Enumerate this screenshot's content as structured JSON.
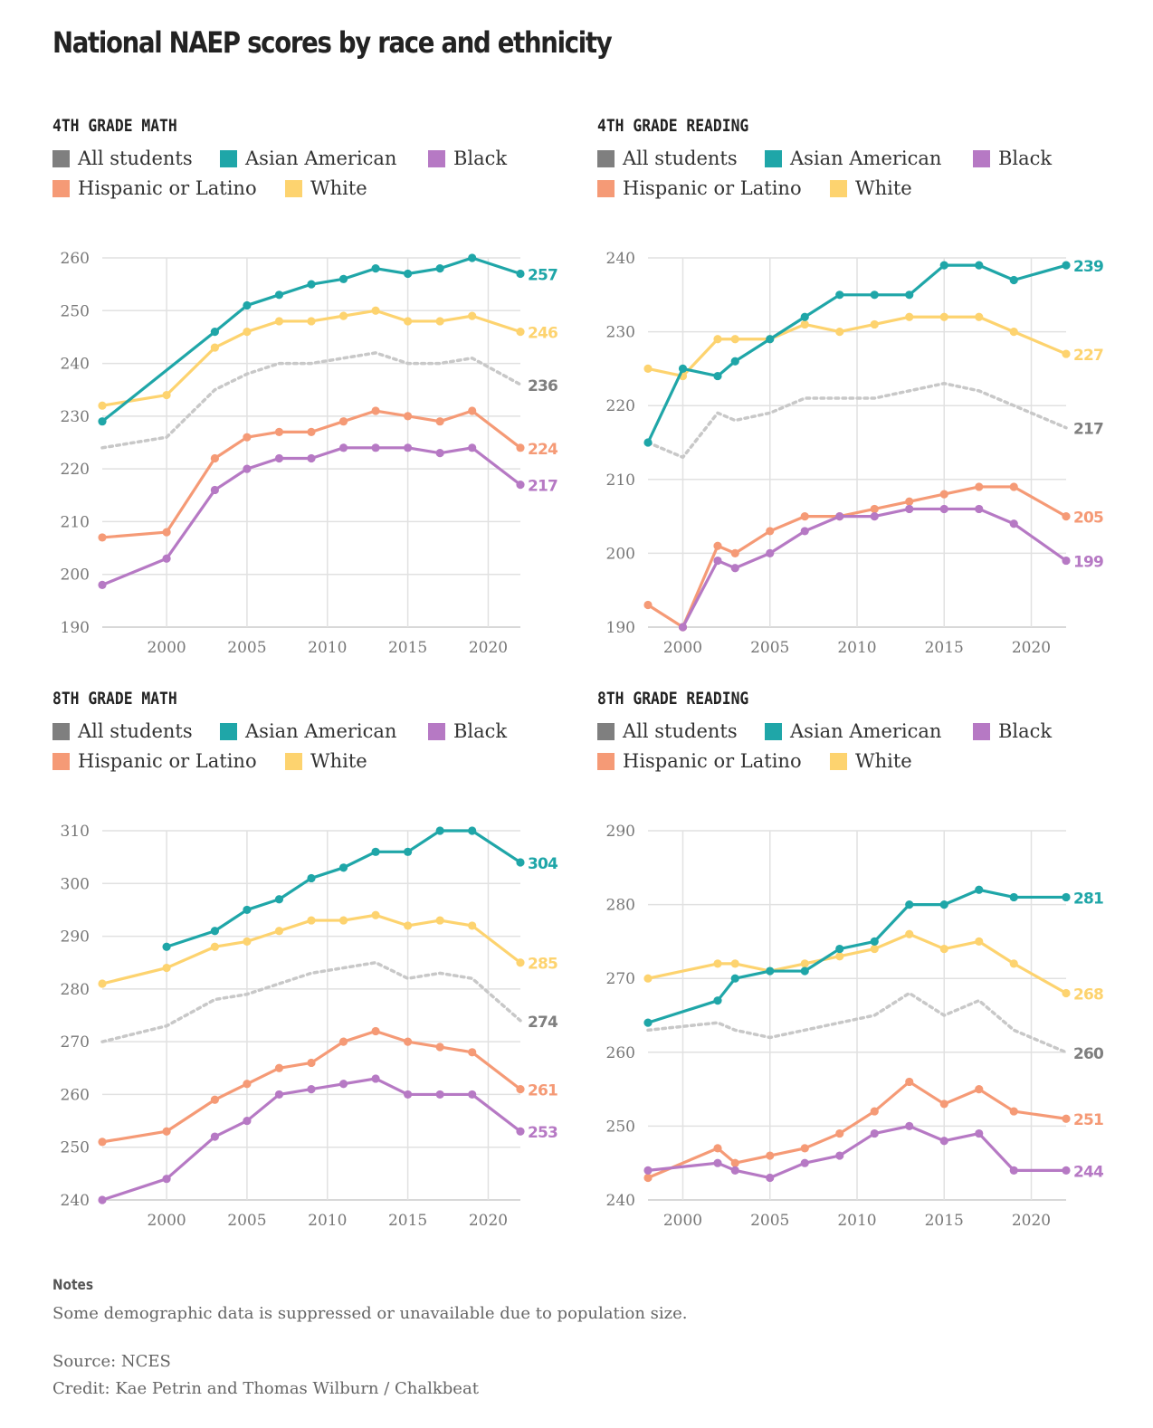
{
  "title": "National NAEP scores by race and ethnicity",
  "legend": [
    {
      "name": "All students",
      "color": "#7f7f7f"
    },
    {
      "name": "Asian American",
      "color": "#1fa6a8"
    },
    {
      "name": "Black",
      "color": "#b679c4"
    },
    {
      "name": "Hispanic or Latino",
      "color": "#f59a76"
    },
    {
      "name": "White",
      "color": "#fdd36f"
    }
  ],
  "notes": {
    "heading": "Notes",
    "text": "Some demographic data is suppressed or unavailable due to population size.",
    "source": "Source: NCES",
    "credit": "Credit: Kae Petrin and Thomas Wilburn / Chalkbeat"
  },
  "chart_data": [
    {
      "type": "line",
      "title": "4TH GRADE MATH",
      "xlim": [
        1996,
        2022
      ],
      "ylim": [
        190,
        260
      ],
      "yticks": [
        190,
        200,
        210,
        220,
        230,
        240,
        250,
        260
      ],
      "xticks": [
        2000,
        2005,
        2010,
        2015,
        2020
      ],
      "grid": true,
      "series": [
        {
          "name": "All students",
          "color": "#c8c8c8",
          "label_color": "#7f7f7f",
          "dashed": true,
          "end_label": "236",
          "x": [
            1996,
            2000,
            2003,
            2005,
            2007,
            2009,
            2011,
            2013,
            2015,
            2017,
            2019,
            2022
          ],
          "y": [
            224,
            226,
            235,
            238,
            240,
            240,
            241,
            242,
            240,
            240,
            241,
            236
          ]
        },
        {
          "name": "White",
          "color": "#fdd36f",
          "label_color": "#fdd36f",
          "end_label": "246",
          "x": [
            1996,
            2000,
            2003,
            2005,
            2007,
            2009,
            2011,
            2013,
            2015,
            2017,
            2019,
            2022
          ],
          "y": [
            232,
            234,
            243,
            246,
            248,
            248,
            249,
            250,
            248,
            248,
            249,
            246
          ]
        },
        {
          "name": "Hispanic or Latino",
          "color": "#f59a76",
          "label_color": "#f59a76",
          "end_label": "224",
          "x": [
            1996,
            2000,
            2003,
            2005,
            2007,
            2009,
            2011,
            2013,
            2015,
            2017,
            2019,
            2022
          ],
          "y": [
            207,
            208,
            222,
            226,
            227,
            227,
            229,
            231,
            230,
            229,
            231,
            224
          ]
        },
        {
          "name": "Black",
          "color": "#b679c4",
          "label_color": "#b679c4",
          "end_label": "217",
          "x": [
            1996,
            2000,
            2003,
            2005,
            2007,
            2009,
            2011,
            2013,
            2015,
            2017,
            2019,
            2022
          ],
          "y": [
            198,
            203,
            216,
            220,
            222,
            222,
            224,
            224,
            224,
            223,
            224,
            217
          ]
        },
        {
          "name": "Asian American",
          "color": "#1fa6a8",
          "label_color": "#1fa6a8",
          "end_label": "257",
          "x": [
            1996,
            2003,
            2005,
            2007,
            2009,
            2011,
            2013,
            2015,
            2017,
            2019,
            2022
          ],
          "y": [
            229,
            246,
            251,
            253,
            255,
            256,
            258,
            257,
            258,
            260,
            257
          ]
        }
      ]
    },
    {
      "type": "line",
      "title": "4TH GRADE READING",
      "xlim": [
        1998,
        2022
      ],
      "ylim": [
        190,
        240
      ],
      "yticks": [
        190,
        200,
        210,
        220,
        230,
        240
      ],
      "xticks": [
        2000,
        2005,
        2010,
        2015,
        2020
      ],
      "grid": true,
      "series": [
        {
          "name": "All students",
          "color": "#c8c8c8",
          "label_color": "#7f7f7f",
          "dashed": true,
          "end_label": "217",
          "x": [
            1998,
            2000,
            2002,
            2003,
            2005,
            2007,
            2009,
            2011,
            2013,
            2015,
            2017,
            2019,
            2022
          ],
          "y": [
            215,
            213,
            219,
            218,
            219,
            221,
            221,
            221,
            222,
            223,
            222,
            220,
            217
          ]
        },
        {
          "name": "White",
          "color": "#fdd36f",
          "label_color": "#fdd36f",
          "end_label": "227",
          "x": [
            1998,
            2000,
            2002,
            2003,
            2005,
            2007,
            2009,
            2011,
            2013,
            2015,
            2017,
            2019,
            2022
          ],
          "y": [
            225,
            224,
            229,
            229,
            229,
            231,
            230,
            231,
            232,
            232,
            232,
            230,
            227
          ]
        },
        {
          "name": "Hispanic or Latino",
          "color": "#f59a76",
          "label_color": "#f59a76",
          "end_label": "205",
          "x": [
            1998,
            2000,
            2002,
            2003,
            2005,
            2007,
            2009,
            2011,
            2013,
            2015,
            2017,
            2019,
            2022
          ],
          "y": [
            193,
            190,
            201,
            200,
            203,
            205,
            205,
            206,
            207,
            208,
            209,
            209,
            205
          ]
        },
        {
          "name": "Black",
          "color": "#b679c4",
          "label_color": "#b679c4",
          "end_label": "199",
          "x": [
            2000,
            2002,
            2003,
            2005,
            2007,
            2009,
            2011,
            2013,
            2015,
            2017,
            2019,
            2022
          ],
          "y": [
            190,
            199,
            198,
            200,
            203,
            205,
            205,
            206,
            206,
            206,
            204,
            199
          ]
        },
        {
          "name": "Asian American",
          "color": "#1fa6a8",
          "label_color": "#1fa6a8",
          "end_label": "239",
          "x": [
            1998,
            2000,
            2002,
            2003,
            2005,
            2007,
            2009,
            2011,
            2013,
            2015,
            2017,
            2019,
            2022
          ],
          "y": [
            215,
            225,
            224,
            226,
            229,
            232,
            235,
            235,
            235,
            239,
            239,
            237,
            239
          ]
        }
      ]
    },
    {
      "type": "line",
      "title": "8TH GRADE MATH",
      "xlim": [
        1996,
        2022
      ],
      "ylim": [
        240,
        310
      ],
      "yticks": [
        240,
        250,
        260,
        270,
        280,
        290,
        300,
        310
      ],
      "xticks": [
        2000,
        2005,
        2010,
        2015,
        2020
      ],
      "grid": true,
      "series": [
        {
          "name": "All students",
          "color": "#c8c8c8",
          "label_color": "#7f7f7f",
          "dashed": true,
          "end_label": "274",
          "x": [
            1996,
            2000,
            2003,
            2005,
            2007,
            2009,
            2011,
            2013,
            2015,
            2017,
            2019,
            2022
          ],
          "y": [
            270,
            273,
            278,
            279,
            281,
            283,
            284,
            285,
            282,
            283,
            282,
            274
          ]
        },
        {
          "name": "White",
          "color": "#fdd36f",
          "label_color": "#fdd36f",
          "end_label": "285",
          "x": [
            1996,
            2000,
            2003,
            2005,
            2007,
            2009,
            2011,
            2013,
            2015,
            2017,
            2019,
            2022
          ],
          "y": [
            281,
            284,
            288,
            289,
            291,
            293,
            293,
            294,
            292,
            293,
            292,
            285
          ]
        },
        {
          "name": "Hispanic or Latino",
          "color": "#f59a76",
          "label_color": "#f59a76",
          "end_label": "261",
          "x": [
            1996,
            2000,
            2003,
            2005,
            2007,
            2009,
            2011,
            2013,
            2015,
            2017,
            2019,
            2022
          ],
          "y": [
            251,
            253,
            259,
            262,
            265,
            266,
            270,
            272,
            270,
            269,
            268,
            261
          ]
        },
        {
          "name": "Black",
          "color": "#b679c4",
          "label_color": "#b679c4",
          "end_label": "253",
          "x": [
            1996,
            2000,
            2003,
            2005,
            2007,
            2009,
            2011,
            2013,
            2015,
            2017,
            2019,
            2022
          ],
          "y": [
            240,
            244,
            252,
            255,
            260,
            261,
            262,
            263,
            260,
            260,
            260,
            253
          ]
        },
        {
          "name": "Asian American",
          "color": "#1fa6a8",
          "label_color": "#1fa6a8",
          "end_label": "304",
          "x": [
            2000,
            2003,
            2005,
            2007,
            2009,
            2011,
            2013,
            2015,
            2017,
            2019,
            2022
          ],
          "y": [
            288,
            291,
            295,
            297,
            301,
            303,
            306,
            306,
            310,
            310,
            304
          ]
        }
      ]
    },
    {
      "type": "line",
      "title": "8TH GRADE READING",
      "xlim": [
        1998,
        2022
      ],
      "ylim": [
        240,
        290
      ],
      "yticks": [
        240,
        250,
        260,
        270,
        280,
        290
      ],
      "xticks": [
        2000,
        2005,
        2010,
        2015,
        2020
      ],
      "grid": true,
      "series": [
        {
          "name": "All students",
          "color": "#c8c8c8",
          "label_color": "#7f7f7f",
          "dashed": true,
          "end_label": "260",
          "x": [
            1998,
            2002,
            2003,
            2005,
            2007,
            2009,
            2011,
            2013,
            2015,
            2017,
            2019,
            2022
          ],
          "y": [
            263,
            264,
            263,
            262,
            263,
            264,
            265,
            268,
            265,
            267,
            263,
            260
          ]
        },
        {
          "name": "White",
          "color": "#fdd36f",
          "label_color": "#fdd36f",
          "end_label": "268",
          "x": [
            1998,
            2002,
            2003,
            2005,
            2007,
            2009,
            2011,
            2013,
            2015,
            2017,
            2019,
            2022
          ],
          "y": [
            270,
            272,
            272,
            271,
            272,
            273,
            274,
            276,
            274,
            275,
            272,
            268
          ]
        },
        {
          "name": "Hispanic or Latino",
          "color": "#f59a76",
          "label_color": "#f59a76",
          "end_label": "251",
          "x": [
            1998,
            2002,
            2003,
            2005,
            2007,
            2009,
            2011,
            2013,
            2015,
            2017,
            2019,
            2022
          ],
          "y": [
            243,
            247,
            245,
            246,
            247,
            249,
            252,
            256,
            253,
            255,
            252,
            251
          ]
        },
        {
          "name": "Black",
          "color": "#b679c4",
          "label_color": "#b679c4",
          "end_label": "244",
          "x": [
            1998,
            2002,
            2003,
            2005,
            2007,
            2009,
            2011,
            2013,
            2015,
            2017,
            2019,
            2022
          ],
          "y": [
            244,
            245,
            244,
            243,
            245,
            246,
            249,
            250,
            248,
            249,
            244,
            244
          ]
        },
        {
          "name": "Asian American",
          "color": "#1fa6a8",
          "label_color": "#1fa6a8",
          "end_label": "281",
          "x": [
            1998,
            2002,
            2003,
            2005,
            2007,
            2009,
            2011,
            2013,
            2015,
            2017,
            2019,
            2022
          ],
          "y": [
            264,
            267,
            270,
            271,
            271,
            274,
            275,
            280,
            280,
            282,
            281,
            281
          ]
        }
      ]
    }
  ]
}
